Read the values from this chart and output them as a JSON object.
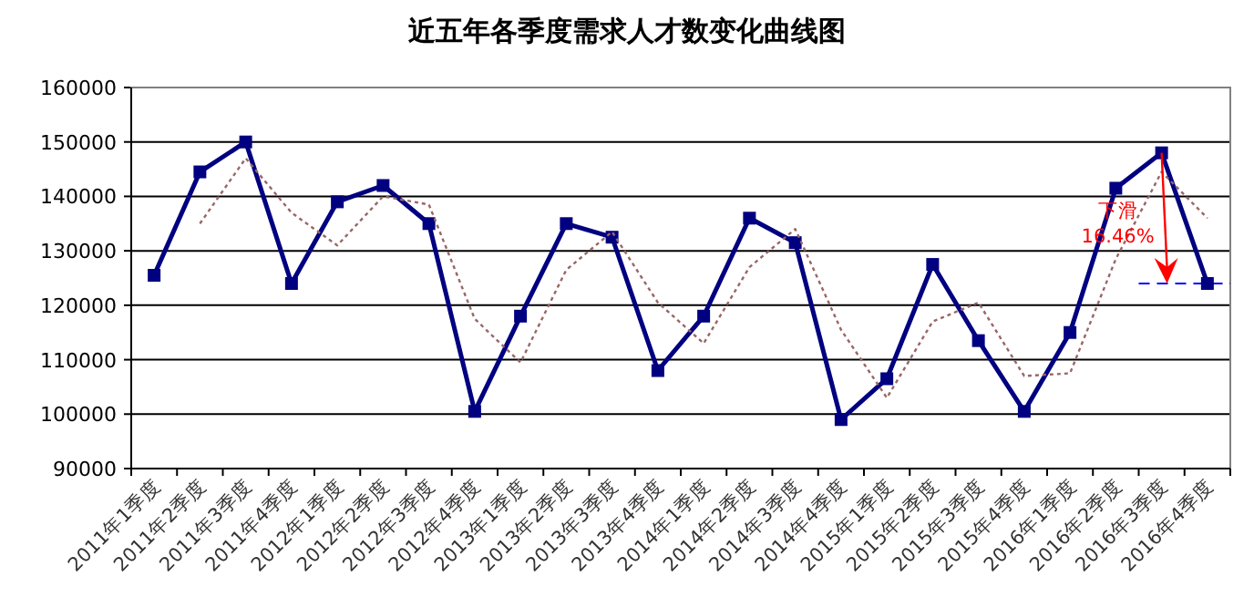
{
  "chart_data": {
    "type": "line",
    "title": "近五年各季度需求人才数变化曲线图",
    "categories": [
      "2011年1季度",
      "2011年2季度",
      "2011年3季度",
      "2011年4季度",
      "2012年1季度",
      "2012年2季度",
      "2012年3季度",
      "2012年4季度",
      "2013年1季度",
      "2013年2季度",
      "2013年3季度",
      "2013年4季度",
      "2014年1季度",
      "2014年2季度",
      "2014年3季度",
      "2014年4季度",
      "2015年1季度",
      "2015年2季度",
      "2015年3季度",
      "2015年4季度",
      "2016年1季度",
      "2016年2季度",
      "2016年3季度",
      "2016年4季度"
    ],
    "series": [
      {
        "color": "#000080",
        "marker": "square",
        "line_style": "solid",
        "values": [
          125500,
          144500,
          150000,
          124000,
          139000,
          142000,
          135000,
          100500,
          118000,
          135000,
          132500,
          108000,
          118000,
          136000,
          131500,
          99000,
          106500,
          127500,
          113500,
          100500,
          115000,
          141500,
          148000,
          124000
        ]
      },
      {
        "color": "#996666",
        "marker": "none",
        "line_style": "dotted",
        "values": [
          null,
          135000,
          147000,
          137000,
          131000,
          140000,
          138500,
          117500,
          109500,
          126500,
          133500,
          120500,
          113000,
          127000,
          134000,
          115500,
          103000,
          117000,
          120500,
          107000,
          107500,
          128500,
          144500,
          136000
        ]
      }
    ],
    "ylim": [
      90000,
      160000
    ],
    "yticks": [
      90000,
      100000,
      110000,
      120000,
      130000,
      140000,
      150000,
      160000
    ],
    "grid": "y",
    "ref_lines": [
      {
        "axis": "y",
        "value": 124000,
        "color": "#0000ff",
        "line_style": "dashed"
      }
    ],
    "annotations": [
      {
        "text": "下滑 16.46%",
        "x": "2016年3季度",
        "y": 148000
      }
    ]
  }
}
